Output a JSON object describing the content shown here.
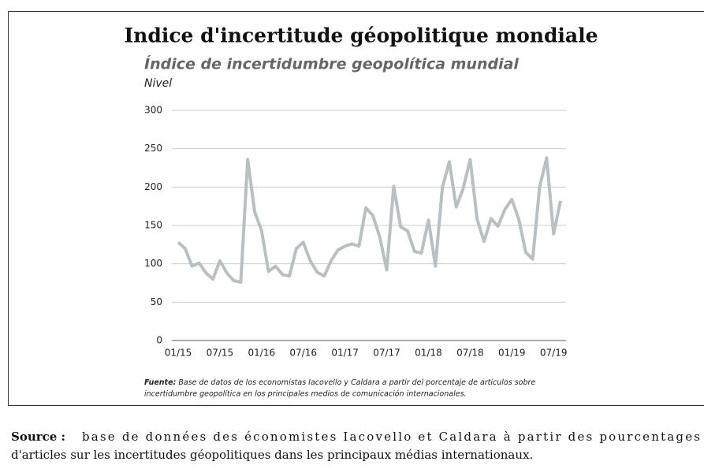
{
  "chart_data": {
    "type": "line",
    "title": "Indice d'incertitude géopolitique mondiale",
    "subtitle": "Índice de incertidumbre geopolítica mundial",
    "y_label": "Nivel",
    "categories": [
      "01/15",
      null,
      null,
      null,
      null,
      null,
      "07/15",
      null,
      null,
      null,
      null,
      null,
      "01/16",
      null,
      null,
      null,
      null,
      null,
      "07/16",
      null,
      null,
      null,
      null,
      null,
      "01/17",
      null,
      null,
      null,
      null,
      null,
      "07/17",
      null,
      null,
      null,
      null,
      null,
      "01/18",
      null,
      null,
      null,
      null,
      null,
      "07/18",
      null,
      null,
      null,
      null,
      null,
      "01/19",
      null,
      null,
      null,
      null,
      null,
      "07/19",
      null
    ],
    "series": [
      {
        "name": "Nivel",
        "color": "#b9c0c3",
        "values": [
          128,
          120,
          97,
          101,
          88,
          80,
          104,
          88,
          78,
          76,
          236,
          168,
          143,
          90,
          97,
          86,
          84,
          120,
          128,
          104,
          89,
          84,
          104,
          118,
          123,
          126,
          123,
          173,
          163,
          135,
          92,
          201,
          148,
          143,
          116,
          114,
          157,
          97,
          199,
          233,
          174,
          198,
          236,
          158,
          129,
          159,
          149,
          171,
          184,
          158,
          115,
          106,
          200,
          238,
          139,
          182
        ]
      }
    ],
    "ylim": [
      0,
      300
    ],
    "yticks": [
      0,
      50,
      100,
      150,
      200,
      250,
      300
    ],
    "grid": true,
    "note_label": "Fuente:",
    "note_lines": [
      "Base de datos de los economistas Iacovello y Caldara a partir del porcentaje de artículos sobre",
      "incertidumbre geopolítica en los principales medios de comunicación internacionales."
    ]
  },
  "source": {
    "label": "Source :",
    "lines": [
      "base de données des économistes Iacovello et Caldara à partir des pourcentages",
      "d'articles sur les incertitudes géopolitiques dans les principaux médias internationaux."
    ]
  }
}
